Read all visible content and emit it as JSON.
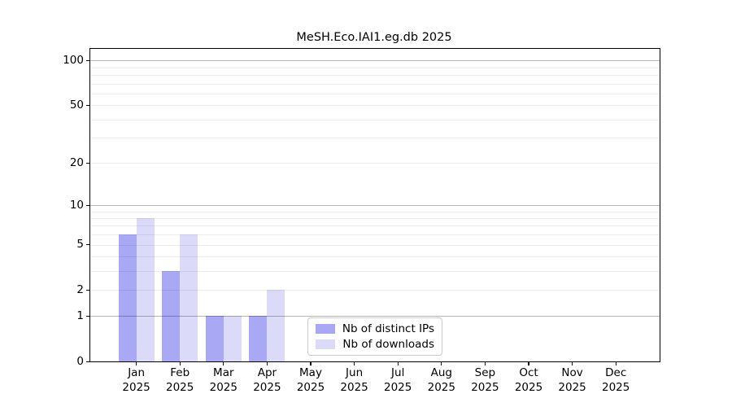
{
  "title": "MeSH.Eco.IAI1.eg.db 2025",
  "chart_data": {
    "type": "bar",
    "title": "MeSH.Eco.IAI1.eg.db 2025",
    "categories": [
      "Jan 2025",
      "Feb 2025",
      "Mar 2025",
      "Apr 2025",
      "May 2025",
      "Jun 2025",
      "Jul 2025",
      "Aug 2025",
      "Sep 2025",
      "Oct 2025",
      "Nov 2025",
      "Dec 2025"
    ],
    "months": [
      "Jan",
      "Feb",
      "Mar",
      "Apr",
      "May",
      "Jun",
      "Jul",
      "Aug",
      "Sep",
      "Oct",
      "Nov",
      "Dec"
    ],
    "year": "2025",
    "series": [
      {
        "name": "Nb of distinct IPs",
        "color": "#a8a8f5",
        "values": [
          6,
          3,
          1,
          1,
          0,
          0,
          0,
          0,
          0,
          0,
          0,
          0
        ]
      },
      {
        "name": "Nb of downloads",
        "color": "#dbdbf9",
        "values": [
          8,
          6,
          1,
          2,
          0,
          0,
          0,
          0,
          0,
          0,
          0,
          0
        ]
      }
    ],
    "xlabel": "",
    "ylabel": "",
    "yscale": "log1p",
    "ylim": [
      0,
      120
    ],
    "y_ticks": [
      0,
      1,
      2,
      5,
      10,
      20,
      50,
      100
    ],
    "gridlines": {
      "major": [
        1,
        10,
        100
      ],
      "minor": [
        2,
        3,
        4,
        5,
        6,
        7,
        8,
        9,
        20,
        30,
        40,
        50,
        60,
        70,
        80,
        90
      ]
    },
    "legend_position": "lower center"
  }
}
